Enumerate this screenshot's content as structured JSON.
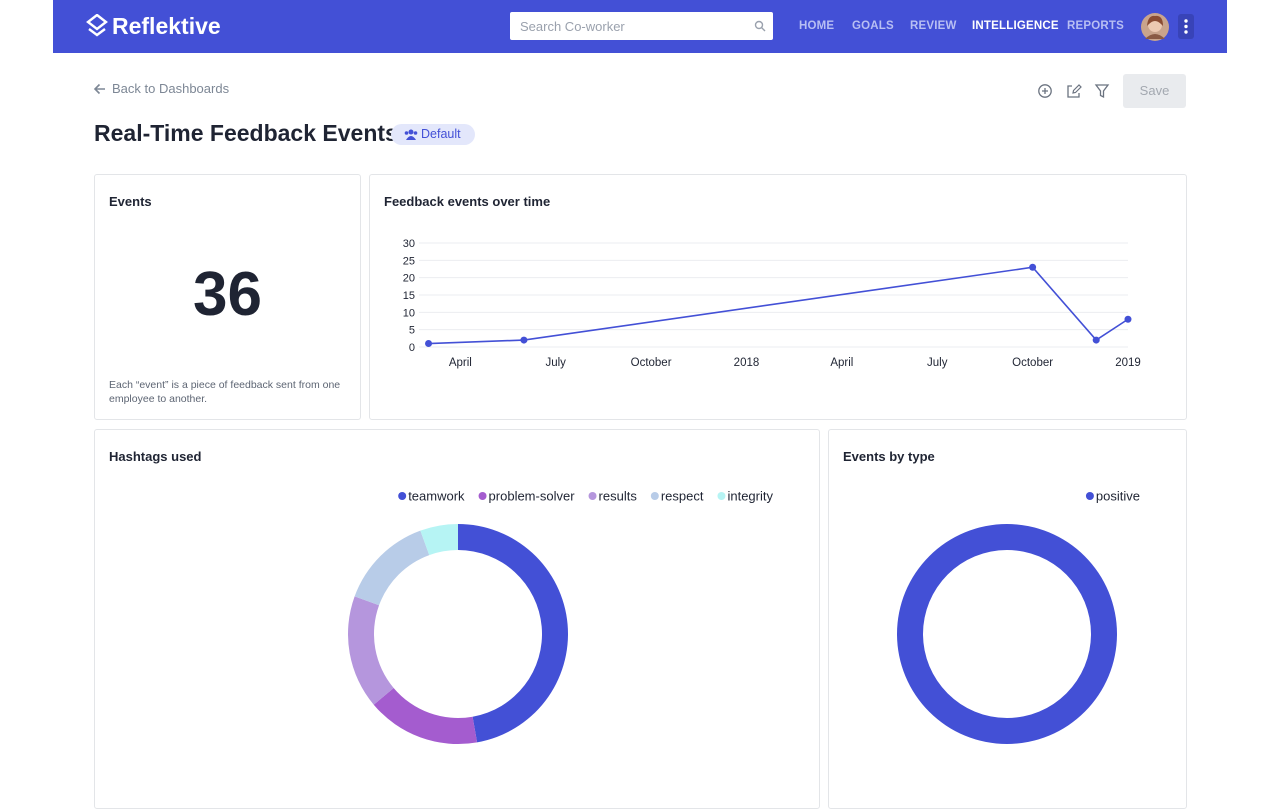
{
  "header": {
    "logo": "Reflektive",
    "search_placeholder": "Search Co-worker",
    "nav": [
      "HOME",
      "GOALS",
      "REVIEW",
      "INTELLIGENCE",
      "REPORTS"
    ]
  },
  "toolbar": {
    "back_link": "Back to Dashboards",
    "save_button": "Save"
  },
  "page_title": "Real-Time Feedback Events",
  "badge": "Default",
  "events_card": {
    "title": "Events",
    "value": 36,
    "note": "Each “event” is a piece of feedback sent from one employee to another."
  },
  "chart_data": [
    {
      "type": "line",
      "title": "Feedback events over time",
      "x": [
        3,
        6,
        22,
        24,
        25
      ],
      "values": [
        1,
        2,
        23,
        2,
        8
      ],
      "color": "#4350d6",
      "xlim": [
        2.7,
        25
      ],
      "xticks": [
        {
          "value": 4,
          "label": "April"
        },
        {
          "value": 7,
          "label": "July"
        },
        {
          "value": 10,
          "label": "October"
        },
        {
          "value": 13,
          "label": "2018"
        },
        {
          "value": 16,
          "label": "April"
        },
        {
          "value": 19,
          "label": "July"
        },
        {
          "value": 22,
          "label": "October"
        },
        {
          "value": 25,
          "label": "2019"
        }
      ],
      "ylim": [
        0,
        30
      ],
      "yticks": [
        0,
        5,
        10,
        15,
        20,
        25,
        30
      ],
      "grid": true
    },
    {
      "type": "donut",
      "title": "Hashtags used",
      "categories": [
        "teamwork",
        "problem-solver",
        "results",
        "respect",
        "integrity"
      ],
      "values": [
        17,
        6,
        6,
        5,
        2
      ],
      "colors": [
        "#4350d6",
        "#a45ccf",
        "#b596dd",
        "#b8cce8",
        "#b6f4f4"
      ],
      "legend": "top-right"
    },
    {
      "type": "donut",
      "title": "Events by type",
      "categories": [
        "positive"
      ],
      "values": [
        36
      ],
      "colors": [
        "#4350d6"
      ],
      "legend": "top-right"
    }
  ]
}
